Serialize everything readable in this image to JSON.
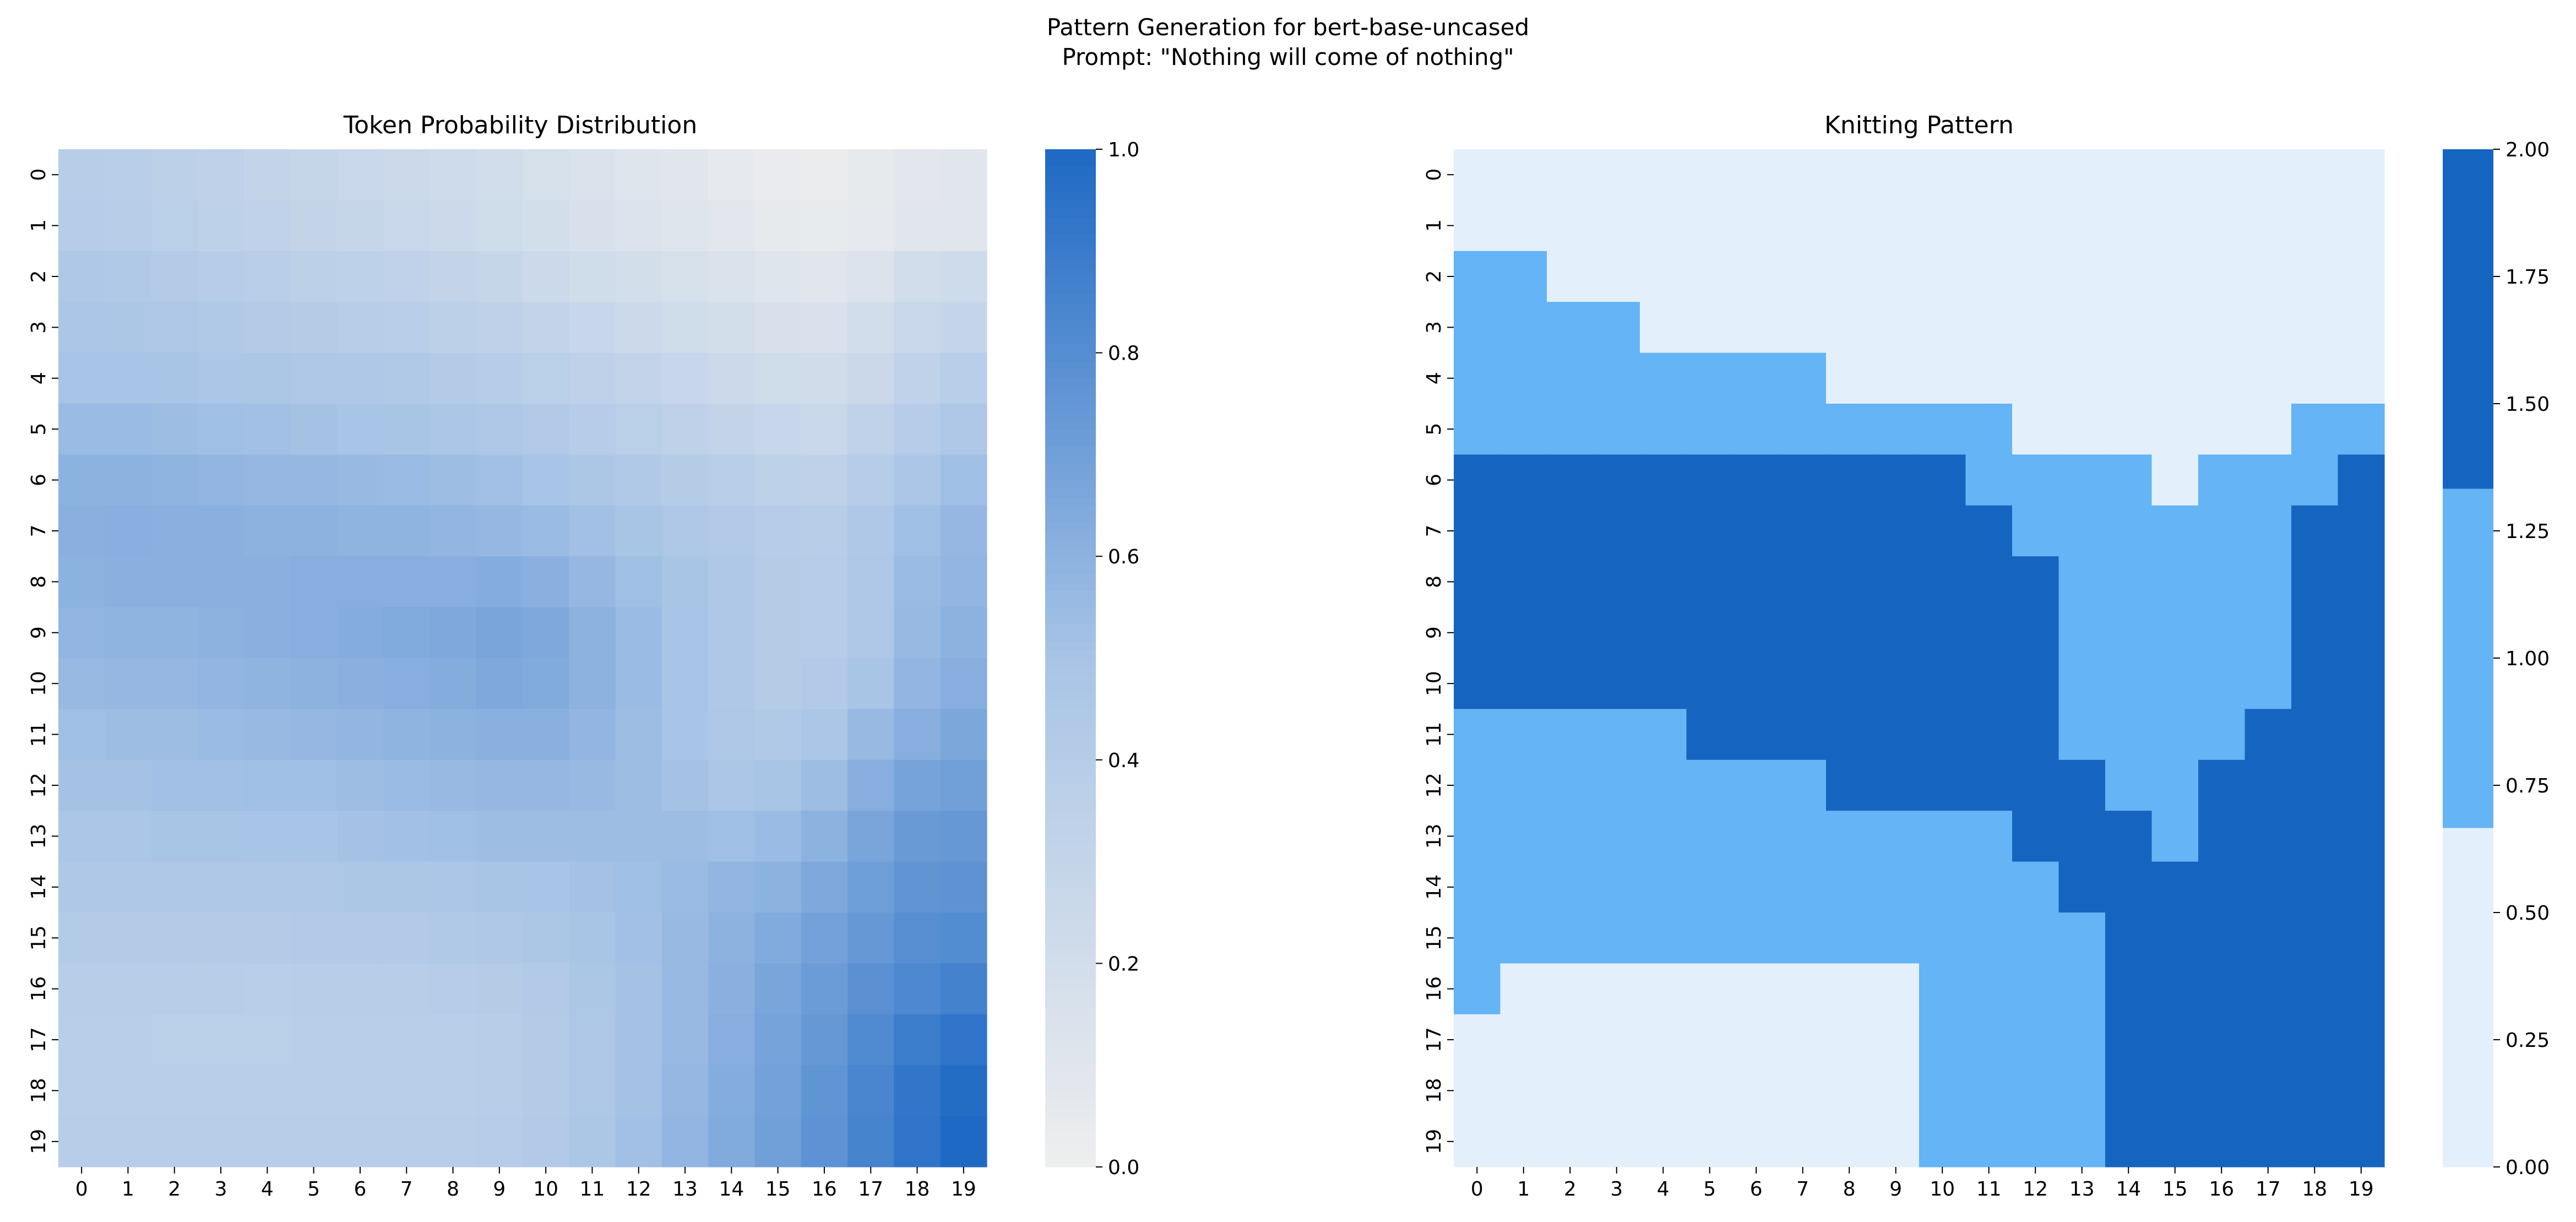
{
  "figure": {
    "title_line1": "Pattern Generation for bert-base-uncased",
    "title_line2": "Prompt: \"Nothing will come of nothing\""
  },
  "chart_data": [
    {
      "type": "heatmap",
      "title": "Token Probability Distribution",
      "x_ticks": [
        "0",
        "1",
        "2",
        "3",
        "4",
        "5",
        "6",
        "7",
        "8",
        "9",
        "10",
        "11",
        "12",
        "13",
        "14",
        "15",
        "16",
        "17",
        "18",
        "19"
      ],
      "y_ticks": [
        "0",
        "1",
        "2",
        "3",
        "4",
        "5",
        "6",
        "7",
        "8",
        "9",
        "10",
        "11",
        "12",
        "13",
        "14",
        "15",
        "16",
        "17",
        "18",
        "19"
      ],
      "colorscale": {
        "min": 0.0,
        "max": 1.0,
        "low_color": "#eeeeee",
        "high_color": "#1e69c4"
      },
      "colorbar_ticks": [
        "0.0",
        "0.2",
        "0.4",
        "0.6",
        "0.8",
        "1.0"
      ],
      "colorbar_values": [
        0.0,
        0.2,
        0.4,
        0.6,
        0.8,
        1.0
      ],
      "values": [
        [
          0.39,
          0.38,
          0.36,
          0.34,
          0.31,
          0.29,
          0.27,
          0.25,
          0.23,
          0.2,
          0.17,
          0.14,
          0.11,
          0.09,
          0.06,
          0.03,
          0.02,
          0.05,
          0.08,
          0.09
        ],
        [
          0.4,
          0.39,
          0.37,
          0.35,
          0.33,
          0.31,
          0.29,
          0.27,
          0.25,
          0.22,
          0.19,
          0.16,
          0.13,
          0.11,
          0.08,
          0.05,
          0.04,
          0.06,
          0.09,
          0.1
        ],
        [
          0.45,
          0.44,
          0.42,
          0.4,
          0.38,
          0.36,
          0.35,
          0.33,
          0.31,
          0.29,
          0.25,
          0.22,
          0.19,
          0.17,
          0.14,
          0.11,
          0.1,
          0.13,
          0.2,
          0.23
        ],
        [
          0.48,
          0.47,
          0.46,
          0.44,
          0.42,
          0.41,
          0.39,
          0.38,
          0.36,
          0.34,
          0.31,
          0.28,
          0.25,
          0.22,
          0.19,
          0.16,
          0.15,
          0.2,
          0.27,
          0.3
        ],
        [
          0.5,
          0.5,
          0.49,
          0.48,
          0.47,
          0.46,
          0.45,
          0.44,
          0.42,
          0.4,
          0.37,
          0.34,
          0.31,
          0.28,
          0.25,
          0.22,
          0.21,
          0.26,
          0.33,
          0.38
        ],
        [
          0.55,
          0.55,
          0.54,
          0.53,
          0.52,
          0.51,
          0.5,
          0.49,
          0.48,
          0.46,
          0.43,
          0.4,
          0.37,
          0.34,
          0.31,
          0.28,
          0.27,
          0.33,
          0.4,
          0.46
        ],
        [
          0.6,
          0.6,
          0.59,
          0.58,
          0.57,
          0.57,
          0.56,
          0.55,
          0.54,
          0.52,
          0.5,
          0.47,
          0.44,
          0.41,
          0.38,
          0.35,
          0.34,
          0.4,
          0.48,
          0.53
        ],
        [
          0.61,
          0.62,
          0.61,
          0.61,
          0.6,
          0.6,
          0.59,
          0.59,
          0.58,
          0.57,
          0.55,
          0.52,
          0.49,
          0.46,
          0.43,
          0.4,
          0.39,
          0.45,
          0.53,
          0.57
        ],
        [
          0.6,
          0.61,
          0.61,
          0.61,
          0.61,
          0.62,
          0.62,
          0.62,
          0.62,
          0.63,
          0.61,
          0.57,
          0.53,
          0.49,
          0.45,
          0.41,
          0.4,
          0.46,
          0.55,
          0.58
        ],
        [
          0.58,
          0.59,
          0.59,
          0.6,
          0.61,
          0.62,
          0.63,
          0.64,
          0.65,
          0.67,
          0.65,
          0.6,
          0.55,
          0.5,
          0.45,
          0.41,
          0.4,
          0.46,
          0.56,
          0.6
        ],
        [
          0.56,
          0.57,
          0.57,
          0.58,
          0.59,
          0.6,
          0.61,
          0.62,
          0.63,
          0.65,
          0.64,
          0.6,
          0.55,
          0.5,
          0.45,
          0.41,
          0.43,
          0.49,
          0.58,
          0.62
        ],
        [
          0.53,
          0.54,
          0.54,
          0.55,
          0.56,
          0.57,
          0.58,
          0.59,
          0.6,
          0.61,
          0.61,
          0.58,
          0.54,
          0.5,
          0.46,
          0.44,
          0.48,
          0.56,
          0.62,
          0.66
        ],
        [
          0.51,
          0.51,
          0.52,
          0.52,
          0.53,
          0.53,
          0.54,
          0.55,
          0.56,
          0.57,
          0.57,
          0.56,
          0.54,
          0.51,
          0.48,
          0.49,
          0.54,
          0.62,
          0.68,
          0.7
        ],
        [
          0.48,
          0.48,
          0.49,
          0.49,
          0.5,
          0.5,
          0.51,
          0.52,
          0.53,
          0.54,
          0.54,
          0.54,
          0.54,
          0.54,
          0.53,
          0.55,
          0.6,
          0.67,
          0.73,
          0.74
        ],
        [
          0.45,
          0.45,
          0.46,
          0.46,
          0.46,
          0.46,
          0.47,
          0.47,
          0.48,
          0.49,
          0.5,
          0.51,
          0.53,
          0.55,
          0.58,
          0.6,
          0.65,
          0.71,
          0.76,
          0.77
        ],
        [
          0.42,
          0.42,
          0.42,
          0.42,
          0.42,
          0.43,
          0.43,
          0.43,
          0.44,
          0.45,
          0.47,
          0.49,
          0.52,
          0.56,
          0.6,
          0.64,
          0.69,
          0.74,
          0.79,
          0.81
        ],
        [
          0.39,
          0.39,
          0.39,
          0.39,
          0.38,
          0.39,
          0.39,
          0.39,
          0.4,
          0.41,
          0.43,
          0.47,
          0.51,
          0.56,
          0.61,
          0.67,
          0.72,
          0.78,
          0.83,
          0.86
        ],
        [
          0.38,
          0.38,
          0.37,
          0.37,
          0.37,
          0.38,
          0.38,
          0.38,
          0.38,
          0.39,
          0.42,
          0.46,
          0.51,
          0.56,
          0.62,
          0.68,
          0.74,
          0.82,
          0.89,
          0.94
        ],
        [
          0.38,
          0.38,
          0.38,
          0.38,
          0.38,
          0.38,
          0.38,
          0.38,
          0.38,
          0.39,
          0.42,
          0.46,
          0.51,
          0.57,
          0.63,
          0.69,
          0.76,
          0.84,
          0.93,
          0.98
        ],
        [
          0.39,
          0.39,
          0.39,
          0.39,
          0.39,
          0.39,
          0.39,
          0.39,
          0.39,
          0.4,
          0.43,
          0.47,
          0.52,
          0.58,
          0.64,
          0.7,
          0.77,
          0.85,
          0.94,
          1.0
        ]
      ]
    },
    {
      "type": "heatmap",
      "title": "Knitting Pattern",
      "x_ticks": [
        "0",
        "1",
        "2",
        "3",
        "4",
        "5",
        "6",
        "7",
        "8",
        "9",
        "10",
        "11",
        "12",
        "13",
        "14",
        "15",
        "16",
        "17",
        "18",
        "19"
      ],
      "y_ticks": [
        "0",
        "1",
        "2",
        "3",
        "4",
        "5",
        "6",
        "7",
        "8",
        "9",
        "10",
        "11",
        "12",
        "13",
        "14",
        "15",
        "16",
        "17",
        "18",
        "19"
      ],
      "discrete_colors": [
        "#e3f0fb",
        "#64b4f6",
        "#1565c0"
      ],
      "colorscale": {
        "min": 0.0,
        "max": 2.0
      },
      "colorbar_ticks": [
        "0.00",
        "0.25",
        "0.50",
        "0.75",
        "1.00",
        "1.25",
        "1.50",
        "1.75",
        "2.00"
      ],
      "colorbar_values": [
        0.0,
        0.25,
        0.5,
        0.75,
        1.0,
        1.25,
        1.5,
        1.75,
        2.0
      ],
      "values": [
        [
          0,
          0,
          0,
          0,
          0,
          0,
          0,
          0,
          0,
          0,
          0,
          0,
          0,
          0,
          0,
          0,
          0,
          0,
          0,
          0
        ],
        [
          0,
          0,
          0,
          0,
          0,
          0,
          0,
          0,
          0,
          0,
          0,
          0,
          0,
          0,
          0,
          0,
          0,
          0,
          0,
          0
        ],
        [
          1,
          1,
          0,
          0,
          0,
          0,
          0,
          0,
          0,
          0,
          0,
          0,
          0,
          0,
          0,
          0,
          0,
          0,
          0,
          0
        ],
        [
          1,
          1,
          1,
          1,
          0,
          0,
          0,
          0,
          0,
          0,
          0,
          0,
          0,
          0,
          0,
          0,
          0,
          0,
          0,
          0
        ],
        [
          1,
          1,
          1,
          1,
          1,
          1,
          1,
          1,
          0,
          0,
          0,
          0,
          0,
          0,
          0,
          0,
          0,
          0,
          0,
          0
        ],
        [
          1,
          1,
          1,
          1,
          1,
          1,
          1,
          1,
          1,
          1,
          1,
          1,
          0,
          0,
          0,
          0,
          0,
          0,
          1,
          1
        ],
        [
          2,
          2,
          2,
          2,
          2,
          2,
          2,
          2,
          2,
          2,
          2,
          1,
          1,
          1,
          1,
          0,
          1,
          1,
          1,
          2
        ],
        [
          2,
          2,
          2,
          2,
          2,
          2,
          2,
          2,
          2,
          2,
          2,
          2,
          1,
          1,
          1,
          1,
          1,
          1,
          2,
          2
        ],
        [
          2,
          2,
          2,
          2,
          2,
          2,
          2,
          2,
          2,
          2,
          2,
          2,
          2,
          1,
          1,
          1,
          1,
          1,
          2,
          2
        ],
        [
          2,
          2,
          2,
          2,
          2,
          2,
          2,
          2,
          2,
          2,
          2,
          2,
          2,
          1,
          1,
          1,
          1,
          1,
          2,
          2
        ],
        [
          2,
          2,
          2,
          2,
          2,
          2,
          2,
          2,
          2,
          2,
          2,
          2,
          2,
          1,
          1,
          1,
          1,
          1,
          2,
          2
        ],
        [
          1,
          1,
          1,
          1,
          1,
          2,
          2,
          2,
          2,
          2,
          2,
          2,
          2,
          1,
          1,
          1,
          1,
          2,
          2,
          2
        ],
        [
          1,
          1,
          1,
          1,
          1,
          1,
          1,
          1,
          2,
          2,
          2,
          2,
          2,
          2,
          1,
          1,
          2,
          2,
          2,
          2
        ],
        [
          1,
          1,
          1,
          1,
          1,
          1,
          1,
          1,
          1,
          1,
          1,
          1,
          2,
          2,
          2,
          1,
          2,
          2,
          2,
          2
        ],
        [
          1,
          1,
          1,
          1,
          1,
          1,
          1,
          1,
          1,
          1,
          1,
          1,
          1,
          2,
          2,
          2,
          2,
          2,
          2,
          2
        ],
        [
          1,
          1,
          1,
          1,
          1,
          1,
          1,
          1,
          1,
          1,
          1,
          1,
          1,
          1,
          2,
          2,
          2,
          2,
          2,
          2
        ],
        [
          1,
          0,
          0,
          0,
          0,
          0,
          0,
          0,
          0,
          0,
          1,
          1,
          1,
          1,
          2,
          2,
          2,
          2,
          2,
          2
        ],
        [
          0,
          0,
          0,
          0,
          0,
          0,
          0,
          0,
          0,
          0,
          1,
          1,
          1,
          1,
          2,
          2,
          2,
          2,
          2,
          2
        ],
        [
          0,
          0,
          0,
          0,
          0,
          0,
          0,
          0,
          0,
          0,
          1,
          1,
          1,
          1,
          2,
          2,
          2,
          2,
          2,
          2
        ],
        [
          0,
          0,
          0,
          0,
          0,
          0,
          0,
          0,
          0,
          0,
          1,
          1,
          1,
          1,
          2,
          2,
          2,
          2,
          2,
          2
        ]
      ]
    }
  ]
}
